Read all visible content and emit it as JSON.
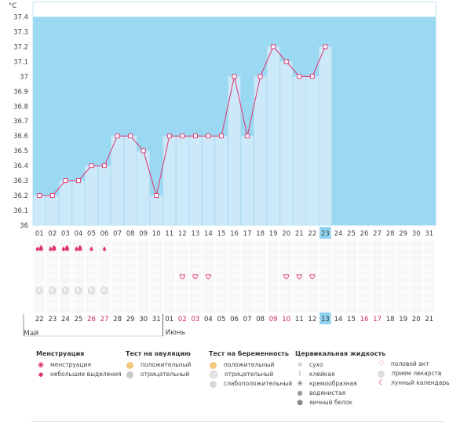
{
  "chart_data": {
    "type": "line",
    "unit_label": "°C",
    "y_ticks": [
      "37.4",
      "37.3",
      "37.2",
      "37.1",
      "37",
      "36.9",
      "36.8",
      "36.7",
      "36.6",
      "36.5",
      "36.4",
      "36.3",
      "36.2",
      "36.1",
      "36"
    ],
    "ylim": [
      36,
      37.5
    ],
    "cycle_days": [
      "01",
      "02",
      "03",
      "04",
      "05",
      "06",
      "07",
      "08",
      "09",
      "10",
      "11",
      "12",
      "13",
      "14",
      "15",
      "16",
      "17",
      "18",
      "19",
      "20",
      "21",
      "22",
      "23",
      "24",
      "25",
      "26",
      "27",
      "28",
      "29",
      "30",
      "31"
    ],
    "temperatures": [
      36.2,
      36.2,
      36.3,
      36.3,
      36.4,
      36.4,
      36.6,
      36.6,
      36.5,
      36.2,
      36.6,
      36.6,
      36.6,
      36.6,
      36.6,
      37.0,
      36.6,
      37.0,
      37.2,
      37.1,
      37.0,
      37.0,
      37.2
    ],
    "current_day_index": 22,
    "dates": [
      "22",
      "23",
      "24",
      "25",
      "26",
      "27",
      "28",
      "29",
      "30",
      "31",
      "01",
      "02",
      "03",
      "04",
      "05",
      "06",
      "07",
      "08",
      "09",
      "10",
      "11",
      "12",
      "13",
      "14",
      "15",
      "16",
      "17",
      "18",
      "19",
      "20",
      "21"
    ],
    "date_colors": [
      "#333",
      "#333",
      "#333",
      "#333",
      "#cc2266",
      "#cc2266",
      "#333",
      "#333",
      "#333",
      "#333",
      "#333",
      "#cc2266",
      "#cc2266",
      "#333",
      "#333",
      "#333",
      "#333",
      "#333",
      "#cc2266",
      "#cc2266",
      "#333",
      "#333",
      "#333",
      "#333",
      "#333",
      "#cc2266",
      "#cc2266",
      "#333",
      "#333",
      "#333",
      "#333"
    ],
    "month_start": "Май",
    "month_next": "Июнь",
    "month_next_index": 10,
    "menstruation_days": [
      0,
      1,
      2,
      3
    ],
    "spotting_days": [
      4,
      5
    ],
    "intercourse_days": [
      11,
      12,
      13,
      19,
      20,
      21
    ],
    "medication_days": [
      0,
      1,
      2,
      3,
      4,
      5
    ],
    "colors": {
      "area": "#cce9f9",
      "future": "#9bd8f2",
      "line": "#e0336e",
      "accent": "#e0336e",
      "today": "#8fd3ef"
    }
  },
  "legend": {
    "menstruation": {
      "title": "Менструация",
      "items": [
        "менструация",
        "небольшие выделения"
      ]
    },
    "ovulation": {
      "title": "Тест на овуляцию",
      "items": [
        "положительный",
        "отрицательный"
      ]
    },
    "pregnancy": {
      "title": "Тест на беременность",
      "items": [
        "положительный",
        "отрицательный",
        "слабоположительный"
      ]
    },
    "cervical": {
      "title": "Цервикальная жидкость",
      "items": [
        "сухо",
        "клейкая",
        "кремообразная",
        "водянистая",
        "яичный белок"
      ]
    },
    "other": {
      "items": [
        "половой акт",
        "прием лекарств",
        "лунный календарь"
      ]
    }
  }
}
